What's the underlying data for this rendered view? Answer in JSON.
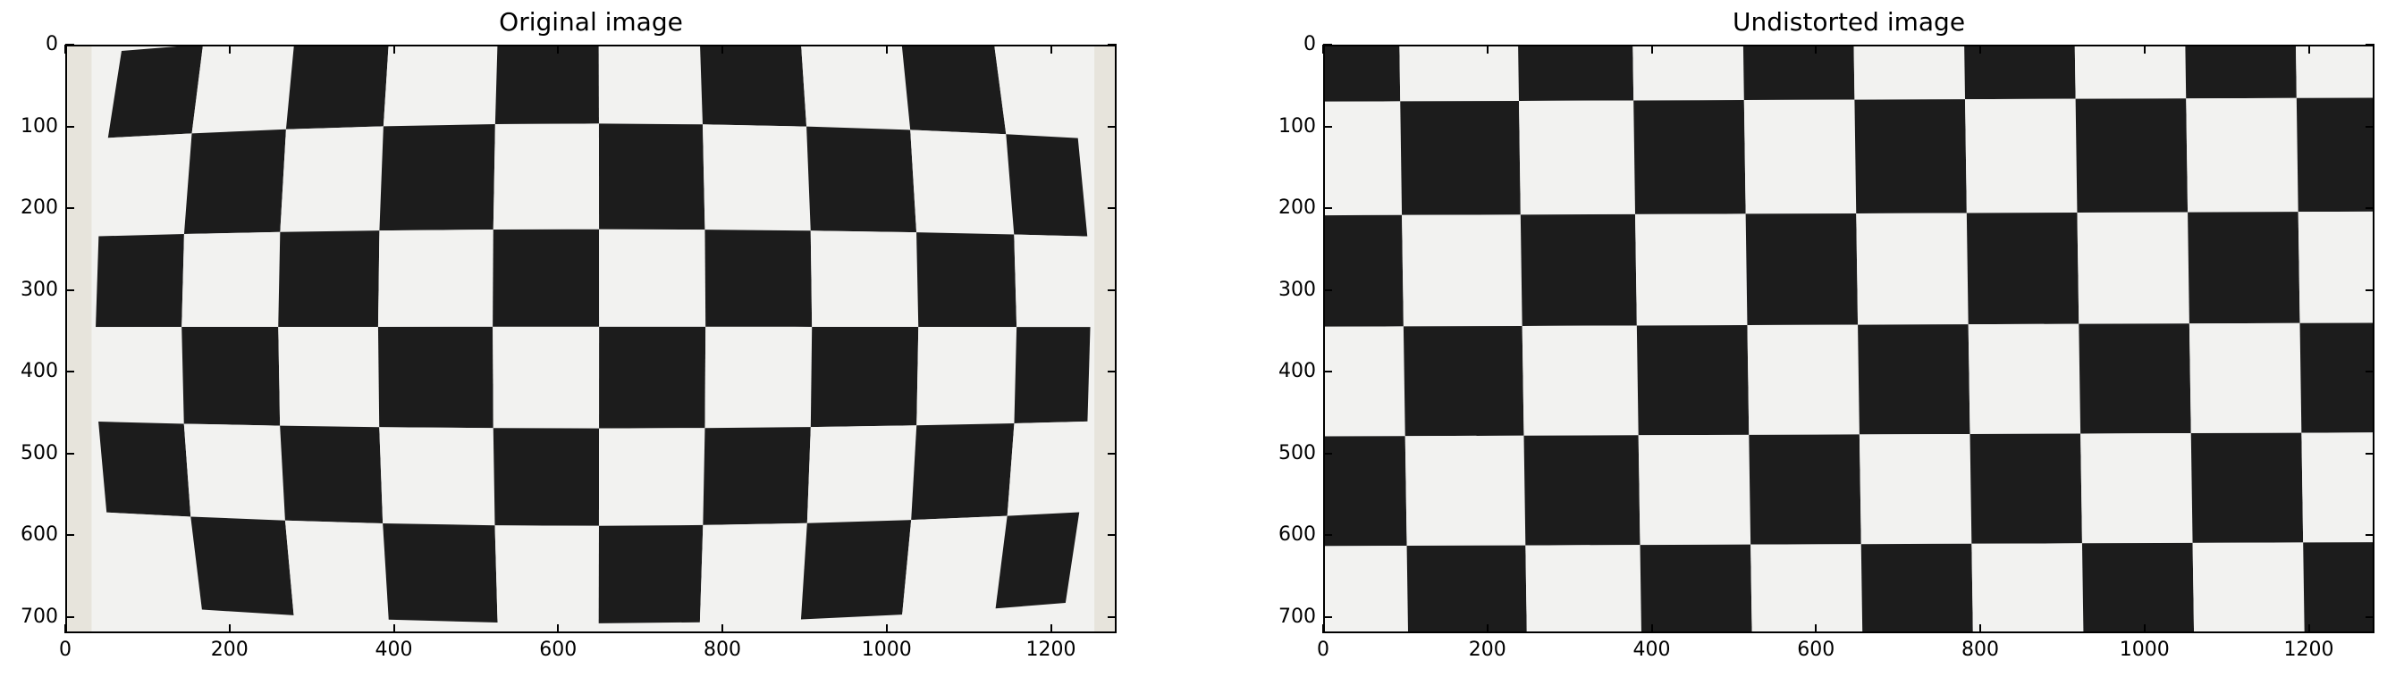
{
  "panels": [
    {
      "title": "Original image",
      "x_ticks": [
        "0",
        "200",
        "400",
        "600",
        "800",
        "1000",
        "1200"
      ],
      "y_ticks": [
        "0",
        "100",
        "200",
        "300",
        "400",
        "500",
        "600",
        "700"
      ],
      "x_tick_values": [
        0,
        200,
        400,
        600,
        800,
        1000,
        1200
      ],
      "y_tick_values": [
        0,
        100,
        200,
        300,
        400,
        500,
        600,
        700
      ],
      "xlim": [
        0,
        1280
      ],
      "ylim": [
        720,
        0
      ],
      "content": "checkerboard-distorted"
    },
    {
      "title": "Undistorted image",
      "x_ticks": [
        "0",
        "200",
        "400",
        "600",
        "800",
        "1000",
        "1200"
      ],
      "y_ticks": [
        "0",
        "100",
        "200",
        "300",
        "400",
        "500",
        "600",
        "700"
      ],
      "x_tick_values": [
        0,
        200,
        400,
        600,
        800,
        1000,
        1200
      ],
      "y_tick_values": [
        0,
        100,
        200,
        300,
        400,
        500,
        600,
        700
      ],
      "xlim": [
        0,
        1280
      ],
      "ylim": [
        720,
        0
      ],
      "content": "checkerboard-undistorted"
    }
  ],
  "colors": {
    "dark_square": "#1c1c1c",
    "light_square": "#f2f2f0",
    "axis": "#000000",
    "background": "#ffffff"
  }
}
